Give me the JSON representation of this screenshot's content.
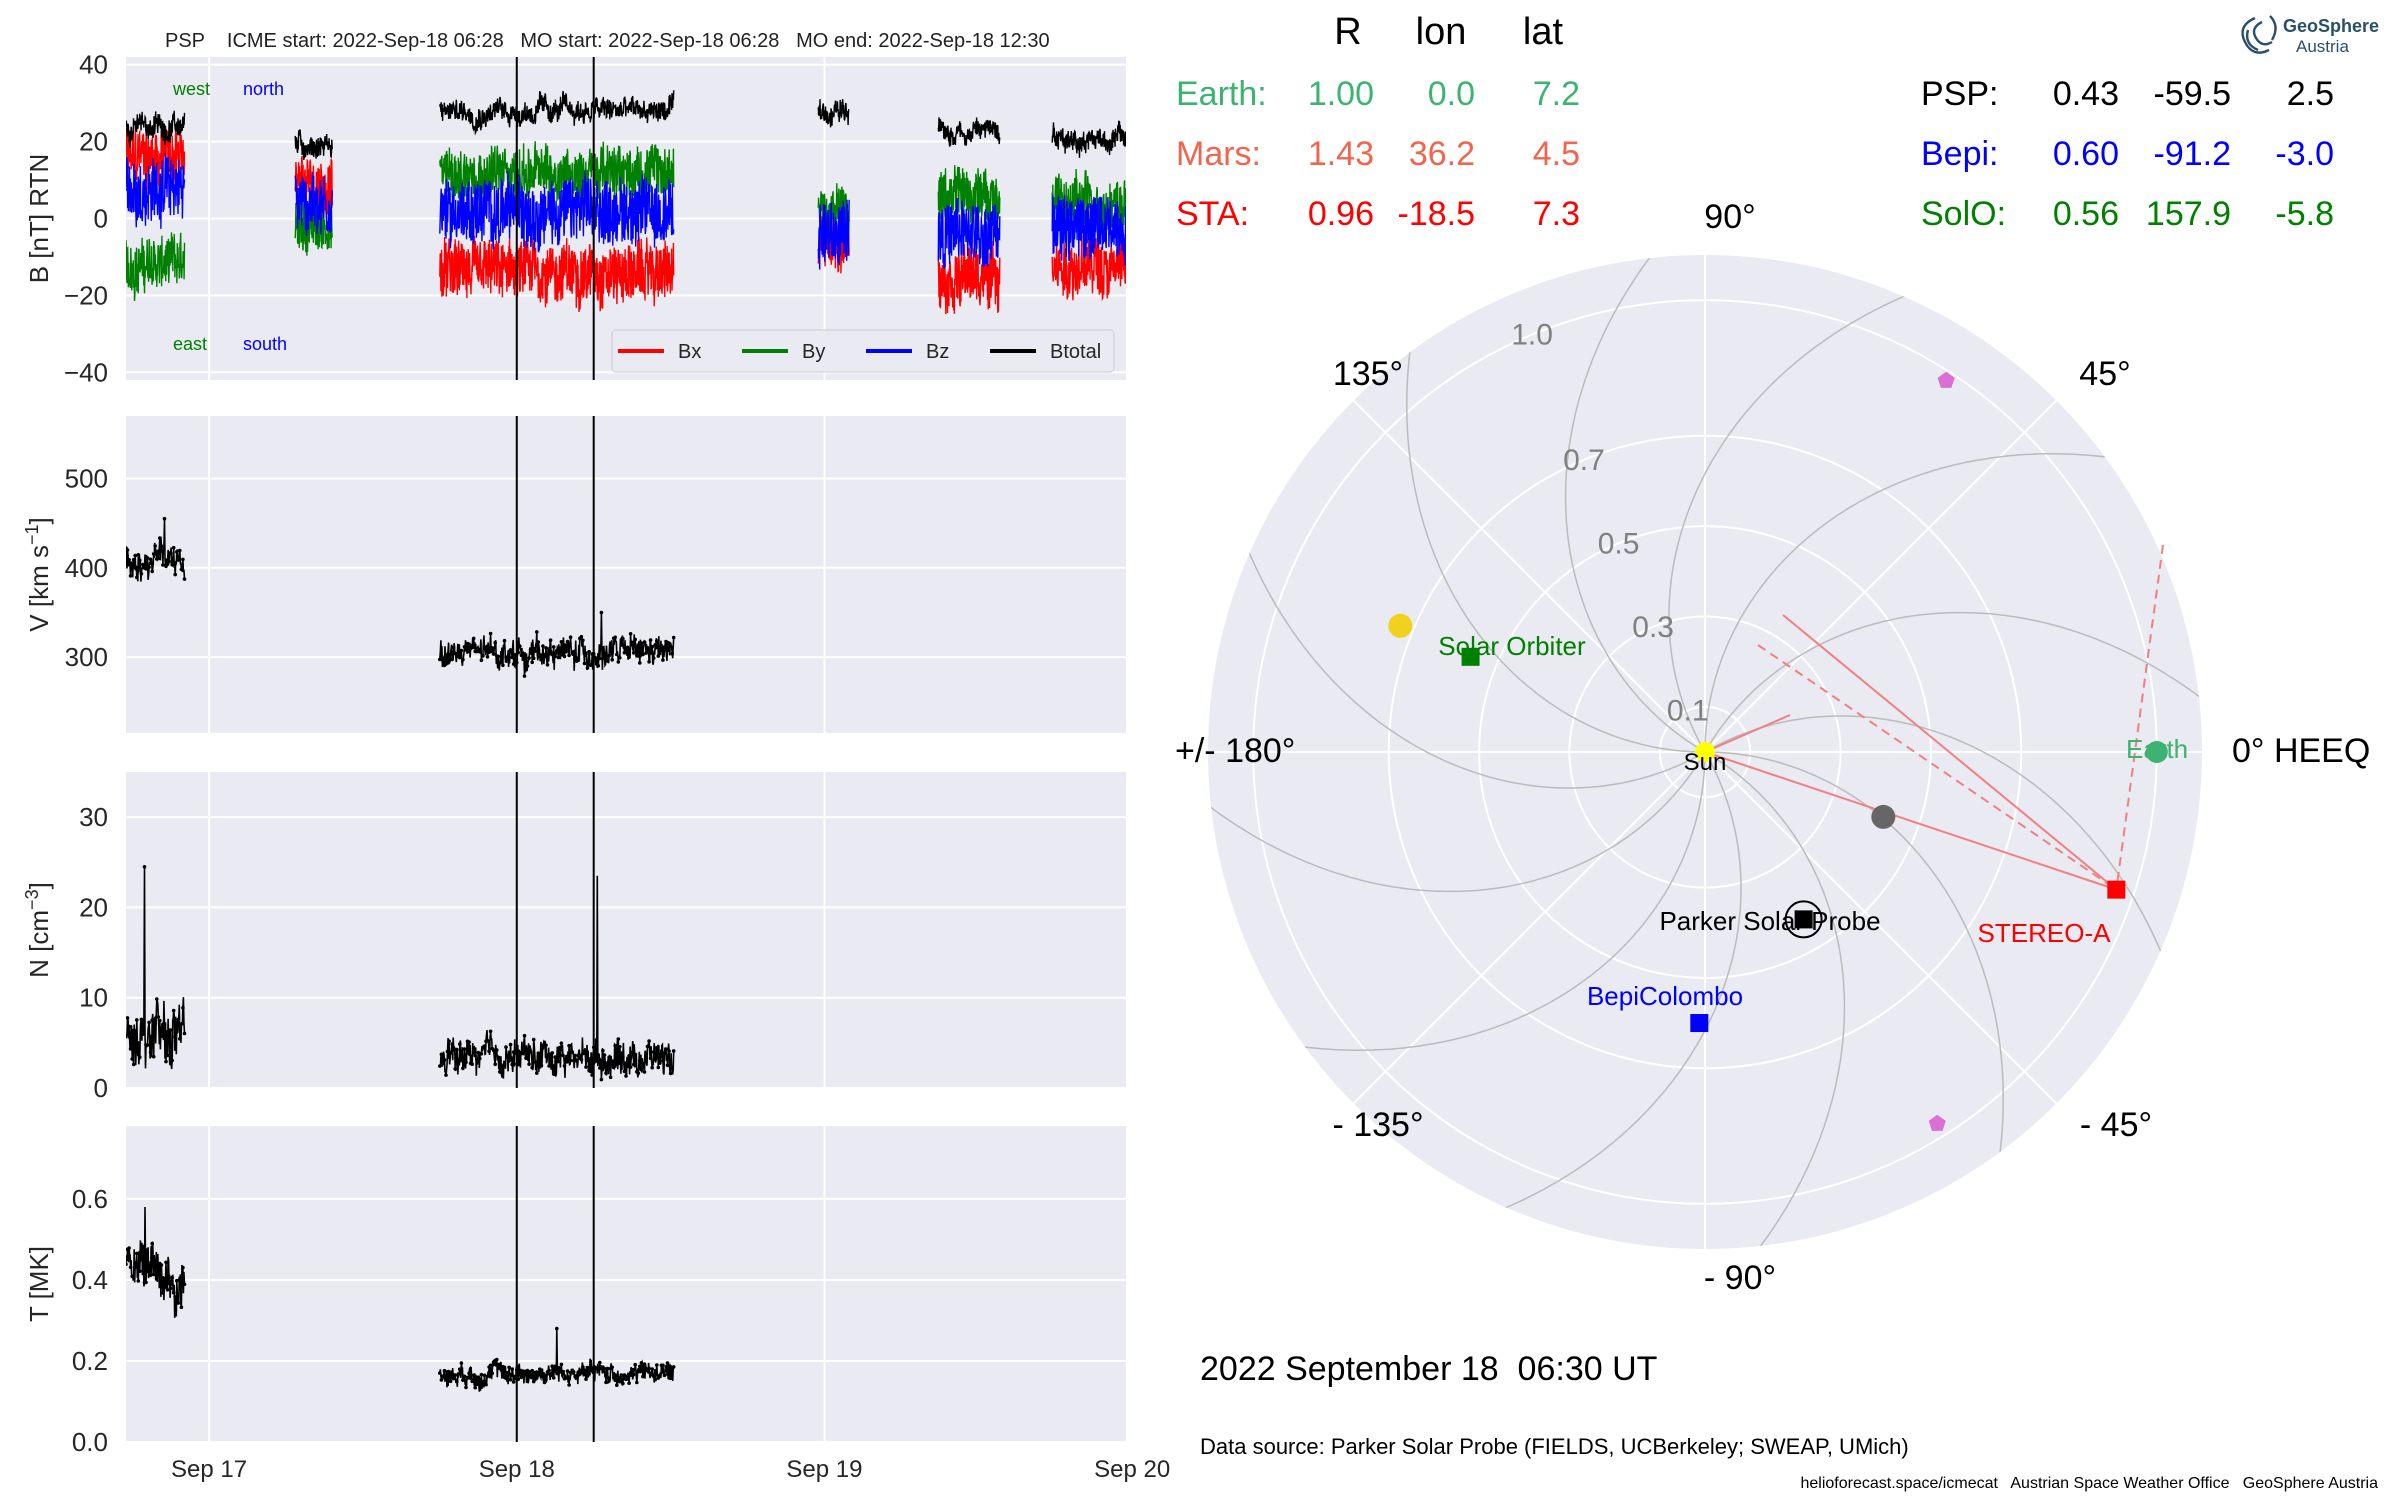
{
  "header": {
    "title": "PSP    ICME start: 2022-Sep-18 06:28   MO start: 2022-Sep-18 06:28   MO end: 2022-Sep-18 12:30"
  },
  "date_text": "2022 September 18  06:30 UT",
  "source_text": "Data source: Parker Solar Probe (FIELDS, UCBerkeley; SWEAP, UMich)",
  "footer_text": "helioforecast.space/icmecat   Austrian Space Weather Office   GeoSphere Austria",
  "logo": {
    "line1": "GeoSphere",
    "line2": "Austria"
  },
  "position_table": {
    "headers": [
      "R",
      "lon",
      "lat"
    ],
    "rows_left": [
      {
        "name": "Earth:",
        "R": "1.00",
        "lon": "0.0",
        "lat": "7.2",
        "color": "#3cb371"
      },
      {
        "name": "Mars:",
        "R": "1.43",
        "lon": "36.2",
        "lat": "4.5",
        "color": "#f0654d"
      },
      {
        "name": "STA:",
        "R": "0.96",
        "lon": "-18.5",
        "lat": "7.3",
        "color": "#ff0000"
      }
    ],
    "rows_right": [
      {
        "name": "PSP:",
        "R": "0.43",
        "lon": "-59.5",
        "lat": "2.5",
        "color": "#000000"
      },
      {
        "name": "Bepi:",
        "R": "0.60",
        "lon": "-91.2",
        "lat": "-3.0",
        "color": "#0000ff"
      },
      {
        "name": "SolO:",
        "R": "0.56",
        "lon": "157.9",
        "lat": "-5.8",
        "color": "#008000"
      }
    ]
  },
  "chart_data": [
    {
      "type": "line",
      "panel": "B",
      "ylabel": "B [nT] RTN",
      "ylim": [
        -42,
        42
      ],
      "yticks": [
        "40",
        "20",
        "0",
        "−20",
        "−40"
      ],
      "xlim": [
        0,
        3.25
      ],
      "xticks": [
        "Sep 17",
        "Sep 18",
        "Sep 19",
        "Sep 20"
      ],
      "labels": {
        "west": "west",
        "north": "north",
        "east": "east",
        "south": "south"
      },
      "legend": [
        "Bx",
        "By",
        "Bz",
        "Btotal"
      ],
      "colors": {
        "Bx": "#ff0000",
        "By": "#008000",
        "Bz": "#0000ff",
        "Btotal": "#000000"
      },
      "segments": [
        {
          "x": [
            0.0,
            0.19
          ],
          "bt": 24,
          "bx": 16,
          "by": -12,
          "bz": 8
        },
        {
          "x": [
            0.55,
            0.67
          ],
          "bt": 19,
          "bx": 8,
          "by": -2,
          "bz": 4
        },
        {
          "x": [
            1.02,
            1.78
          ],
          "bt": 28,
          "bx": -14,
          "by": 12,
          "bz": 2
        },
        {
          "x": [
            2.25,
            2.35
          ],
          "bt": 28,
          "bx": -5,
          "by": 2,
          "bz": -4
        },
        {
          "x": [
            2.64,
            2.84
          ],
          "bt": 23,
          "bx": -15,
          "by": 6,
          "bz": -4
        },
        {
          "x": [
            3.01,
            3.25
          ],
          "bt": 21,
          "bx": -12,
          "by": 4,
          "bz": -2
        }
      ],
      "vlines": [
        1.27,
        1.52
      ]
    },
    {
      "type": "line",
      "panel": "V",
      "ylabel": "V [km s",
      "ylabel_sup": "−1",
      "ylabel_end": "]",
      "ylim": [
        215,
        570
      ],
      "yticks": [
        "500",
        "400",
        "300"
      ],
      "segments": [
        {
          "x": [
            0.0,
            0.19
          ],
          "mean": 408,
          "amp": 28,
          "spike": 455
        },
        {
          "x": [
            1.02,
            1.78
          ],
          "mean": 305,
          "amp": 25,
          "spike": 350
        }
      ],
      "vlines": [
        1.27,
        1.52
      ]
    },
    {
      "type": "line",
      "panel": "N",
      "ylabel": "N [cm",
      "ylabel_sup": "−3",
      "ylabel_end": "]",
      "ylim": [
        0,
        35
      ],
      "yticks": [
        "30",
        "20",
        "10",
        "0"
      ],
      "segments": [
        {
          "x": [
            0.0,
            0.19
          ],
          "mean": 6,
          "amp": 5,
          "spike": 24.5
        },
        {
          "x": [
            1.02,
            1.78
          ],
          "mean": 3.5,
          "amp": 3,
          "spike": 23.5
        }
      ],
      "vlines": [
        1.27,
        1.52
      ]
    },
    {
      "type": "line",
      "panel": "T",
      "ylabel": "T [MK]",
      "ylim": [
        0,
        0.78
      ],
      "yticks": [
        "0.6",
        "0.4",
        "0.2",
        "0.0"
      ],
      "segments": [
        {
          "x": [
            0.0,
            0.19
          ],
          "mean": 0.4,
          "amp": 0.1,
          "spike": 0.58
        },
        {
          "x": [
            1.02,
            1.78
          ],
          "mean": 0.17,
          "amp": 0.04,
          "spike": 0.28
        }
      ],
      "vlines": [
        1.27,
        1.52
      ]
    },
    {
      "type": "scatter",
      "panel": "polar",
      "frame": "HEEQ",
      "rmax": 1.1,
      "angle_labels": [
        "0° HEEQ",
        "45°",
        "90°",
        "135°",
        "+/- 180°",
        "- 135°",
        "- 90°",
        "- 45°"
      ],
      "rtick_labels": [
        "0.1",
        "0.3",
        "0.5",
        "0.7",
        "1.0"
      ],
      "rticks": [
        0.1,
        0.3,
        0.5,
        0.7,
        1.0
      ],
      "objects": [
        {
          "name": "Sun",
          "r": 0,
          "lon": 0,
          "marker": "circle",
          "color": "#ffff00"
        },
        {
          "name": "Earth",
          "r": 1.0,
          "lon": 0.0,
          "marker": "circle",
          "color": "#3cb371"
        },
        {
          "name": "STEREO-A",
          "r": 0.96,
          "lon": -18.5,
          "marker": "square",
          "color": "#ff0000"
        },
        {
          "name": "Parker Solar Probe",
          "r": 0.43,
          "lon": -59.5,
          "marker": "square",
          "color": "#000000"
        },
        {
          "name": "BepiColombo",
          "r": 0.6,
          "lon": -91.2,
          "marker": "square",
          "color": "#0000ff"
        },
        {
          "name": "Solar Orbiter",
          "r": 0.56,
          "lon": 157.9,
          "marker": "square",
          "color": "#008000"
        },
        {
          "name": "",
          "r": 0.42,
          "lon": -20,
          "marker": "circle",
          "color": "#666666"
        },
        {
          "name": "",
          "r": 0.73,
          "lon": 157.5,
          "marker": "circle",
          "color": "#f0d21e"
        },
        {
          "name": "",
          "r": 0.98,
          "lon": 57,
          "marker": "pentagon",
          "color": "#da70d6"
        },
        {
          "name": "",
          "r": 0.97,
          "lon": -58,
          "marker": "pentagon",
          "color": "#da70d6"
        }
      ]
    }
  ]
}
